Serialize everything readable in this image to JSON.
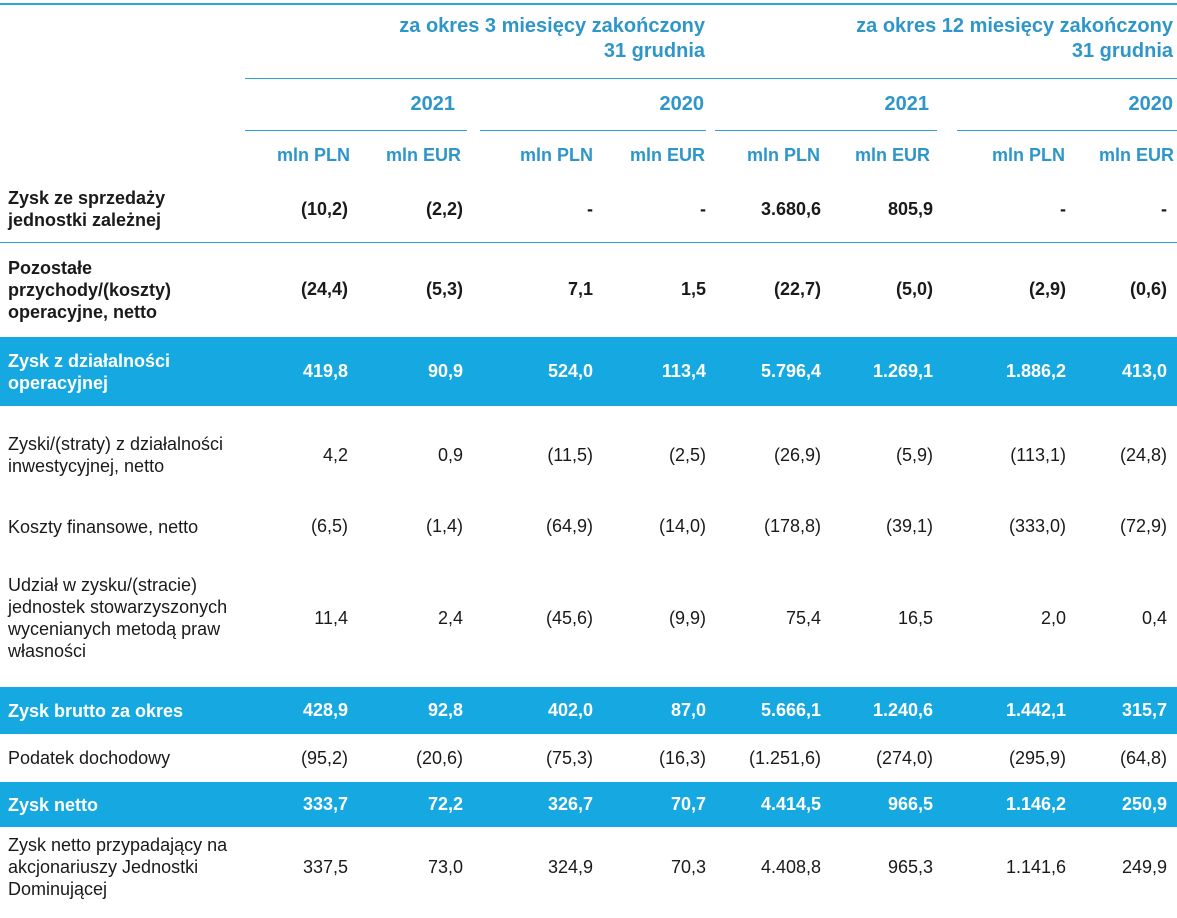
{
  "header": {
    "period_3m_line1": "za okres 3 miesięcy zakończony",
    "period_3m_line2": "31 grudnia",
    "period_12m_line1": "za okres 12 miesięcy zakończony",
    "period_12m_line2": "31 grudnia",
    "years": [
      "2021",
      "2020",
      "2021",
      "2020"
    ],
    "units": [
      "mln PLN",
      "mln EUR",
      "mln PLN",
      "mln EUR",
      "mln PLN",
      "mln EUR",
      "mln PLN",
      "mln EUR"
    ]
  },
  "rows": [
    {
      "label": "Zysk ze sprzedaży jednostki zależnej",
      "values": [
        "(10,2)",
        "(2,2)",
        "-",
        "-",
        "3.680,6",
        "805,9",
        "-",
        "-"
      ]
    },
    {
      "label": "Pozostałe przychody/(koszty) operacyjne, netto",
      "values": [
        "(24,4)",
        "(5,3)",
        "7,1",
        "1,5",
        "(22,7)",
        "(5,0)",
        "(2,9)",
        "(0,6)"
      ]
    },
    {
      "label": "Zysk z działalności operacyjnej",
      "values": [
        "419,8",
        "90,9",
        "524,0",
        "113,4",
        "5.796,4",
        "1.269,1",
        "1.886,2",
        "413,0"
      ]
    },
    {
      "label": "Zyski/(straty) z działalności inwestycyjnej, netto",
      "values": [
        "4,2",
        "0,9",
        "(11,5)",
        "(2,5)",
        "(26,9)",
        "(5,9)",
        "(113,1)",
        "(24,8)"
      ]
    },
    {
      "label": "Koszty finansowe, netto",
      "values": [
        "(6,5)",
        "(1,4)",
        "(64,9)",
        "(14,0)",
        "(178,8)",
        "(39,1)",
        "(333,0)",
        "(72,9)"
      ]
    },
    {
      "label": "Udział w zysku/(stracie) jednostek stowarzyszonych wycenianych metodą praw własności",
      "values": [
        "11,4",
        "2,4",
        "(45,6)",
        "(9,9)",
        "75,4",
        "16,5",
        "2,0",
        "0,4"
      ]
    },
    {
      "label": "Zysk brutto za okres",
      "values": [
        "428,9",
        "92,8",
        "402,0",
        "87,0",
        "5.666,1",
        "1.240,6",
        "1.442,1",
        "315,7"
      ]
    },
    {
      "label": "Podatek dochodowy",
      "values": [
        "(95,2)",
        "(20,6)",
        "(75,3)",
        "(16,3)",
        "(1.251,6)",
        "(274,0)",
        "(295,9)",
        "(64,8)"
      ]
    },
    {
      "label": "Zysk netto",
      "values": [
        "333,7",
        "72,2",
        "326,7",
        "70,7",
        "4.414,5",
        "966,5",
        "1.146,2",
        "250,9"
      ]
    },
    {
      "label": "Zysk netto przypadający na akcjonariuszy Jednostki Dominującej",
      "values": [
        "337,5",
        "73,0",
        "324,9",
        "70,3",
        "4.408,8",
        "965,3",
        "1.141,6",
        "249,9"
      ]
    }
  ]
}
